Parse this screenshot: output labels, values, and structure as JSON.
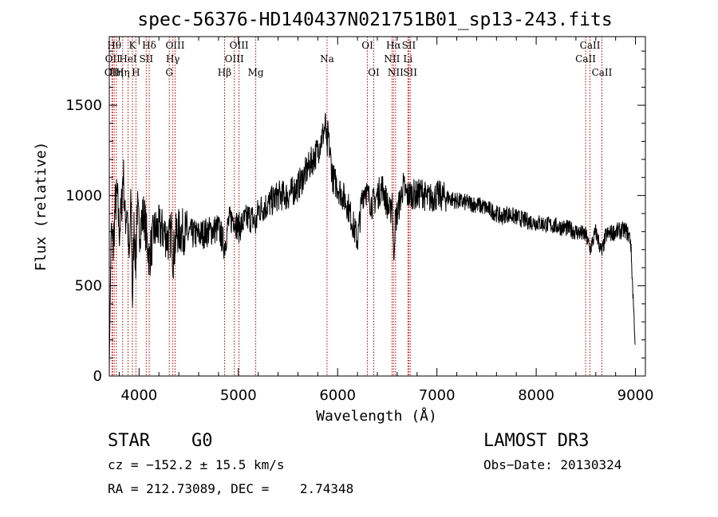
{
  "chart_data": {
    "type": "line",
    "title": "spec-56376-HD140437N021751B01_sp13-243.fits",
    "xlabel": "Wavelength (Å)",
    "ylabel": "Flux (relative)",
    "xlim": [
      3700,
      9100
    ],
    "ylim": [
      0,
      1880
    ],
    "xticks": [
      4000,
      5000,
      6000,
      7000,
      8000,
      9000
    ],
    "xtick_labels": [
      "4000",
      "5000",
      "6000",
      "7000",
      "8000",
      "9000"
    ],
    "yticks": [
      0,
      500,
      1000,
      1500
    ],
    "ytick_labels": [
      "0",
      "500",
      "1000",
      "1500"
    ],
    "series": [
      {
        "name": "spectrum",
        "x": [
          3700,
          3720,
          3740,
          3760,
          3780,
          3800,
          3820,
          3840,
          3860,
          3880,
          3900,
          3920,
          3933,
          3950,
          3968,
          3980,
          4000,
          4020,
          4050,
          4080,
          4102,
          4150,
          4200,
          4250,
          4300,
          4330,
          4340,
          4380,
          4450,
          4500,
          4600,
          4700,
          4800,
          4861,
          4900,
          4950,
          5000,
          5050,
          5100,
          5150,
          5175,
          5200,
          5300,
          5400,
          5500,
          5600,
          5700,
          5750,
          5800,
          5830,
          5860,
          5880,
          5893,
          5900,
          5920,
          5950,
          6000,
          6050,
          6100,
          6150,
          6200,
          6250,
          6280,
          6300,
          6350,
          6400,
          6450,
          6500,
          6530,
          6550,
          6563,
          6580,
          6620,
          6660,
          6700,
          6750,
          6800,
          6850,
          6900,
          6950,
          7000,
          7100,
          7200,
          7300,
          7400,
          7500,
          7600,
          7650,
          7700,
          7800,
          7900,
          8000,
          8100,
          8200,
          8300,
          8400,
          8500,
          8542,
          8600,
          8662,
          8700,
          8800,
          8900,
          8950,
          9000
        ],
        "y": [
          50,
          850,
          700,
          950,
          1000,
          800,
          900,
          1150,
          850,
          950,
          600,
          1000,
          400,
          850,
          600,
          950,
          800,
          850,
          900,
          750,
          650,
          800,
          820,
          800,
          750,
          810,
          650,
          800,
          800,
          790,
          780,
          800,
          820,
          720,
          850,
          880,
          820,
          850,
          880,
          870,
          830,
          920,
          950,
          1000,
          1000,
          1050,
          1150,
          1200,
          1250,
          1300,
          1350,
          1400,
          1200,
          1350,
          1250,
          1100,
          1050,
          1000,
          950,
          850,
          750,
          1000,
          1050,
          1000,
          950,
          1000,
          1050,
          950,
          900,
          1000,
          650,
          850,
          950,
          1050,
          1000,
          1010,
          1000,
          1020,
          980,
          990,
          1000,
          990,
          970,
          960,
          950,
          930,
          900,
          880,
          900,
          880,
          860,
          850,
          840,
          830,
          820,
          800,
          780,
          700,
          800,
          680,
          780,
          800,
          810,
          760,
          150
        ]
      }
    ],
    "line_markers": [
      {
        "x": 3727,
        "label": "OII",
        "row": 2
      },
      {
        "x": 3734,
        "label": "OII",
        "row": 1
      },
      {
        "x": 3750,
        "label": "Hθ",
        "row": 0
      },
      {
        "x": 3771,
        "label": "Hη",
        "row": 2
      },
      {
        "x": 3835,
        "label": "Hη",
        "row": 2
      },
      {
        "x": 3889,
        "label": "HeI",
        "row": 1
      },
      {
        "x": 3933,
        "label": "K",
        "row": 0
      },
      {
        "x": 3968,
        "label": "H",
        "row": 2
      },
      {
        "x": 4072,
        "label": "SII",
        "row": 1
      },
      {
        "x": 4102,
        "label": "Hδ",
        "row": 0
      },
      {
        "x": 4304,
        "label": "G",
        "row": 2
      },
      {
        "x": 4340,
        "label": "Hγ",
        "row": 1
      },
      {
        "x": 4363,
        "label": "OIII",
        "row": 0
      },
      {
        "x": 4861,
        "label": "Hβ",
        "row": 2
      },
      {
        "x": 4959,
        "label": "OIII",
        "row": 1
      },
      {
        "x": 5007,
        "label": "OIII",
        "row": 0
      },
      {
        "x": 5175,
        "label": "Mg",
        "row": 2
      },
      {
        "x": 5893,
        "label": "Na",
        "row": 1
      },
      {
        "x": 6300,
        "label": "OI",
        "row": 0
      },
      {
        "x": 6364,
        "label": "OI",
        "row": 2
      },
      {
        "x": 6548,
        "label": "NII",
        "row": 1
      },
      {
        "x": 6563,
        "label": "Hα",
        "row": 0
      },
      {
        "x": 6584,
        "label": "NII",
        "row": 2
      },
      {
        "x": 6708,
        "label": "Li",
        "row": 1
      },
      {
        "x": 6717,
        "label": "SII",
        "row": 0
      },
      {
        "x": 6731,
        "label": "SII",
        "row": 2
      },
      {
        "x": 8498,
        "label": "CaII",
        "row": 1
      },
      {
        "x": 8542,
        "label": "CaII",
        "row": 0
      },
      {
        "x": 8662,
        "label": "CaII",
        "row": 2
      }
    ]
  },
  "info": {
    "object_class": "STAR",
    "subclass": "G0",
    "survey": "LAMOST DR3",
    "cz": "cz = −152.2 ± 15.5 km/s",
    "obs_date": "Obs−Date: 20130324",
    "coords": "RA = 212.73089, DEC =    2.74348"
  },
  "colors": {
    "spectrum": "#000000",
    "marker": "#c00000",
    "axes": "#000000"
  }
}
